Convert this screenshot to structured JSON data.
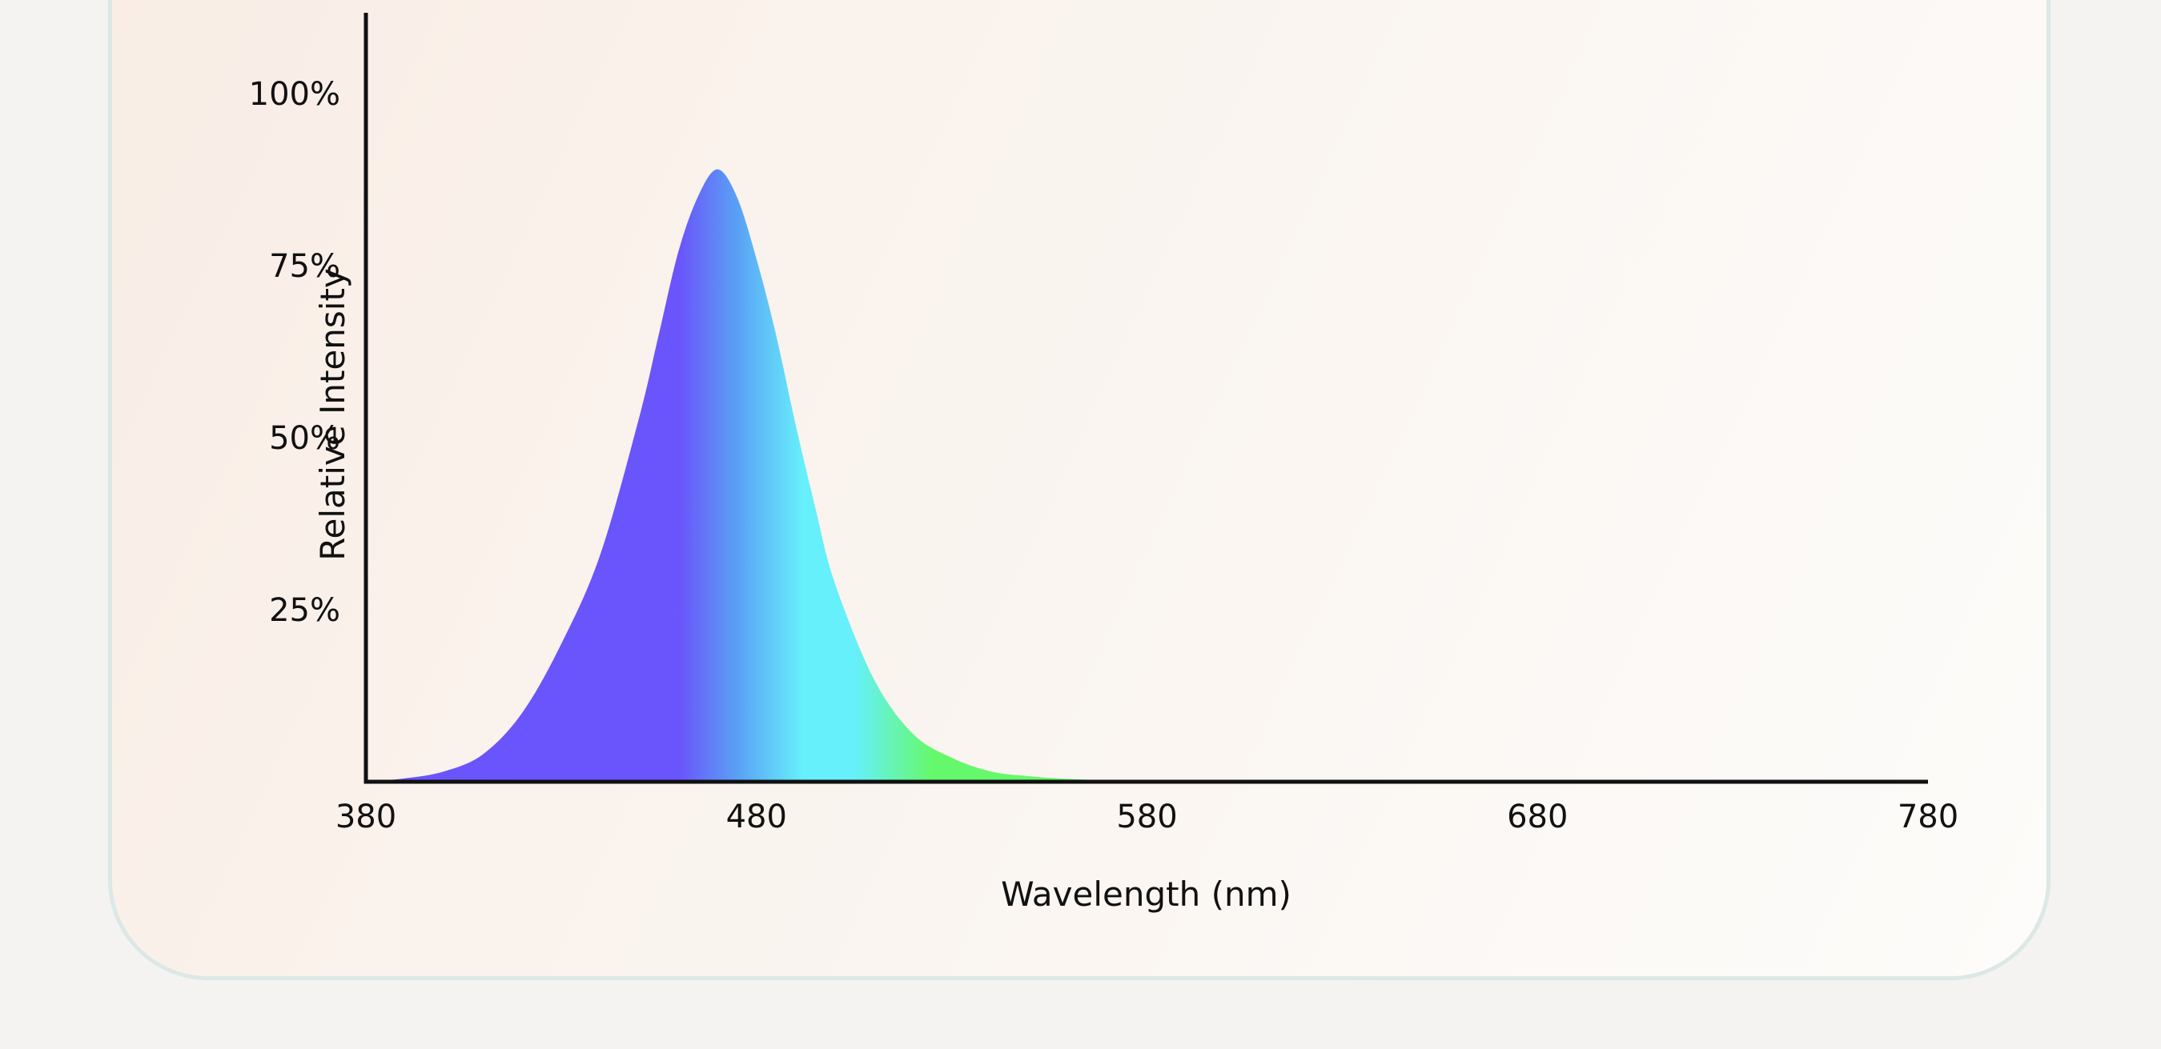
{
  "chart_data": {
    "type": "area",
    "title": "",
    "xlabel": "Wavelength (nm)",
    "ylabel": "Relative Intensity",
    "xlim": [
      380,
      780
    ],
    "ylim": [
      0,
      100
    ],
    "x_ticks": [
      "380",
      "480",
      "580",
      "680",
      "780"
    ],
    "y_ticks": [
      "25%",
      "50%",
      "75%",
      "100%"
    ],
    "grid": false,
    "colors": {
      "violet": "#6a54fb",
      "blue": "#5aa0f5",
      "cyan": "#66f0fb",
      "green": "#66f86c",
      "axis": "#111111"
    },
    "series": [
      {
        "x": [
          380,
          390,
          400,
          410,
          420,
          430,
          440,
          450,
          455,
          460,
          465,
          470,
          475,
          480,
          485,
          490,
          495,
          500,
          510,
          520,
          530,
          540,
          550,
          560,
          570,
          580,
          600,
          650,
          700,
          780
        ],
        "values": [
          0,
          0.5,
          1.5,
          4,
          10,
          20,
          33,
          53,
          65,
          77,
          85,
          89,
          85,
          76,
          65,
          52,
          40,
          29,
          15,
          7,
          3.5,
          1.5,
          0.8,
          0.4,
          0.2,
          0,
          0,
          0,
          0,
          0
        ]
      }
    ]
  }
}
